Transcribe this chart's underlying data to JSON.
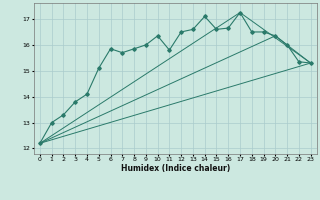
{
  "xlabel": "Humidex (Indice chaleur)",
  "ylabel": "",
  "bg_color": "#cce8e0",
  "grid_color": "#aacccc",
  "line_color": "#2a7a6a",
  "xlim": [
    -0.5,
    23.5
  ],
  "ylim": [
    11.8,
    17.6
  ],
  "yticks": [
    12,
    13,
    14,
    15,
    16,
    17
  ],
  "xticks": [
    0,
    1,
    2,
    3,
    4,
    5,
    6,
    7,
    8,
    9,
    10,
    11,
    12,
    13,
    14,
    15,
    16,
    17,
    18,
    19,
    20,
    21,
    22,
    23
  ],
  "series1_x": [
    0,
    1,
    2,
    3,
    4,
    5,
    6,
    7,
    8,
    9,
    10,
    11,
    12,
    13,
    14,
    15,
    16,
    17,
    18,
    19,
    20,
    21,
    22,
    23
  ],
  "series1_y": [
    12.2,
    13.0,
    13.3,
    13.8,
    14.1,
    15.1,
    15.85,
    15.7,
    15.85,
    16.0,
    16.35,
    15.8,
    16.5,
    16.6,
    17.1,
    16.6,
    16.65,
    17.25,
    16.5,
    16.5,
    16.35,
    16.0,
    15.35,
    15.3
  ],
  "line3_x": [
    0,
    23
  ],
  "line3_y": [
    12.2,
    15.3
  ],
  "line4_x": [
    0,
    20,
    23
  ],
  "line4_y": [
    12.2,
    16.35,
    15.3
  ],
  "line5_x": [
    0,
    17,
    23
  ],
  "line5_y": [
    12.2,
    17.25,
    15.3
  ]
}
